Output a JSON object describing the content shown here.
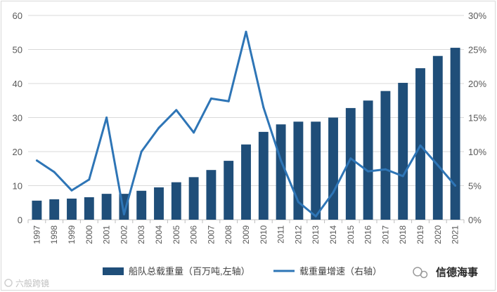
{
  "chart_data": {
    "type": "bar+line",
    "categories": [
      "1997",
      "1998",
      "1999",
      "2000",
      "2001",
      "2002",
      "2003",
      "2004",
      "2005",
      "2006",
      "2007",
      "2008",
      "2009",
      "2010",
      "2011",
      "2012",
      "2013",
      "2014",
      "2015",
      "2016",
      "2017",
      "2018",
      "2019",
      "2020",
      "2021"
    ],
    "series": [
      {
        "name": "船队总载重量（百万吨,左轴）",
        "type": "bar",
        "axis": "left",
        "color": "#1f4e79",
        "values": [
          5.6,
          6.0,
          6.2,
          6.6,
          7.6,
          7.6,
          8.5,
          9.5,
          11.0,
          12.5,
          14.6,
          17.3,
          22.1,
          25.8,
          28.0,
          28.8,
          28.8,
          30.0,
          32.8,
          35.0,
          37.8,
          40.2,
          44.5,
          48.1,
          50.5
        ]
      },
      {
        "name": "载重量增速（右轴）",
        "type": "line",
        "axis": "right",
        "color": "#2e75b6",
        "values": [
          8.7,
          7.0,
          4.3,
          5.9,
          15.0,
          0.8,
          10.0,
          13.5,
          16.1,
          12.8,
          17.8,
          17.4,
          27.6,
          16.5,
          8.7,
          2.6,
          0.5,
          4.0,
          9.0,
          7.1,
          7.4,
          6.4,
          10.9,
          8.0,
          5.0
        ]
      }
    ],
    "y_left": {
      "min": 0,
      "max": 60,
      "step": 10,
      "tick_labels": [
        "0",
        "10",
        "20",
        "30",
        "40",
        "50",
        "60"
      ]
    },
    "y_right": {
      "min": 0,
      "max": 30,
      "step": 5,
      "tick_labels": [
        "0%",
        "5%",
        "10%",
        "15%",
        "20%",
        "25%",
        "30%"
      ]
    },
    "grid": true,
    "legend_position": "bottom"
  },
  "watermarks": {
    "bottom_left": "六般跨镜",
    "bottom_right": "信德海事"
  }
}
